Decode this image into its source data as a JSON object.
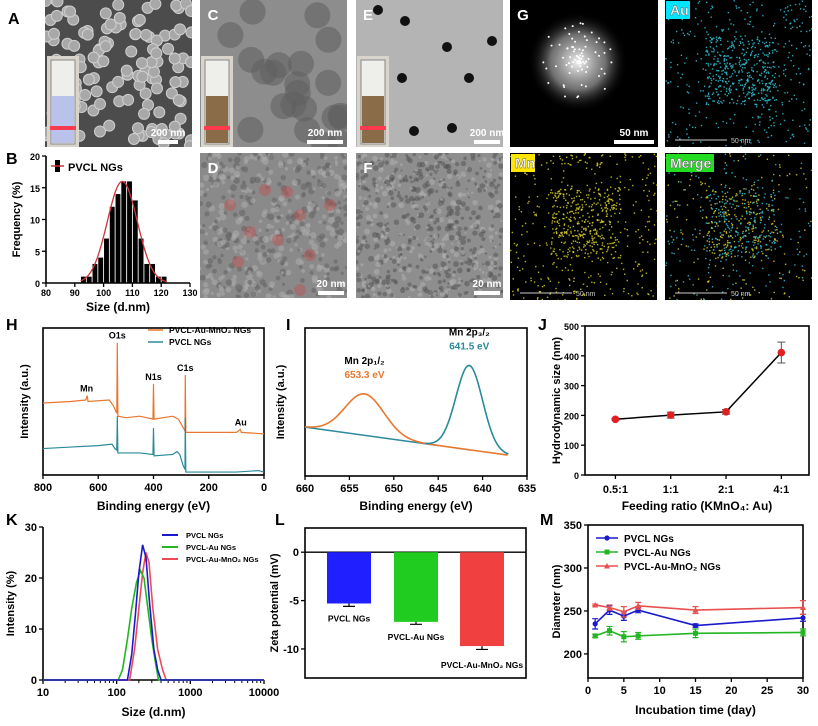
{
  "panels": {
    "A": {
      "letter": "A",
      "scale_bar": "200 nm"
    },
    "C": {
      "letter": "C",
      "scale_bar": "200 nm"
    },
    "E": {
      "letter": "E",
      "scale_bar": "200 nm"
    },
    "G": {
      "letter": "G",
      "scale_bar": "50 nm"
    },
    "Au": {
      "label": "Au",
      "scale_bar": "50 nm",
      "label_color": "#00e5ff",
      "dot_color": "#2fc4d8"
    },
    "D": {
      "letter": "D",
      "scale_bar": "20 nm"
    },
    "F": {
      "letter": "F",
      "scale_bar": "20 nm"
    },
    "Mn": {
      "label": "Mn",
      "scale_bar": "50 nm",
      "label_color": "#ffe600",
      "dot_color": "#d8d02a"
    },
    "Merge": {
      "label": "Merge",
      "scale_bar": "50 nm",
      "label_color": "#22dd22"
    }
  },
  "chart_data": [
    {
      "panel": "B",
      "type": "bar",
      "legend": [
        "PVCL NGs"
      ],
      "legend_position": "top-left",
      "xlabel": "Size (d.nm)",
      "ylabel": "Frequency (%)",
      "xlim": [
        80,
        130
      ],
      "ylim": [
        0,
        20
      ],
      "xticks": [
        80,
        90,
        100,
        110,
        120,
        130
      ],
      "yticks": [
        0,
        5,
        10,
        15,
        20
      ],
      "x": [
        93,
        95,
        97,
        99,
        101,
        103,
        105,
        107,
        109,
        111,
        113,
        115,
        117,
        119,
        121
      ],
      "values": [
        1,
        1,
        3,
        4,
        7,
        12,
        14,
        16,
        16,
        13,
        7,
        3,
        3,
        1,
        1
      ],
      "fit": {
        "type": "gaussian",
        "mean": 106.5,
        "sd": 5.2,
        "peak": 16,
        "color": "#d0343a"
      },
      "bar_color": "#000000"
    },
    {
      "panel": "H",
      "type": "line",
      "xlabel": "Binding energy (eV)",
      "ylabel": "Intensity (a.u.)",
      "xlim": [
        800,
        0
      ],
      "ylim": [
        0,
        100
      ],
      "xticks": [
        800,
        600,
        400,
        200,
        0
      ],
      "series": [
        {
          "name": "PVCL-Au-MnO₂ NGs",
          "color": "#e8772e",
          "points": [
            [
              800,
              49
            ],
            [
              700,
              50
            ],
            [
              645,
              51
            ],
            [
              640,
              54
            ],
            [
              637,
              50
            ],
            [
              560,
              51
            ],
            [
              545,
              47
            ],
            [
              533,
              42
            ],
            [
              531,
              90
            ],
            [
              529,
              40
            ],
            [
              500,
              39
            ],
            [
              450,
              40
            ],
            [
              402,
              38
            ],
            [
              400,
              62
            ],
            [
              398,
              38
            ],
            [
              330,
              40
            ],
            [
              310,
              38
            ],
            [
              292,
              32
            ],
            [
              286,
              30
            ],
            [
              285,
              68
            ],
            [
              283,
              29
            ],
            [
              200,
              29
            ],
            [
              100,
              29
            ],
            [
              86,
              31
            ],
            [
              82,
              29
            ],
            [
              0,
              28
            ]
          ]
        },
        {
          "name": "PVCL NGs",
          "color": "#2a8a9a",
          "points": [
            [
              800,
              18
            ],
            [
              700,
              19
            ],
            [
              600,
              20
            ],
            [
              550,
              21
            ],
            [
              540,
              18
            ],
            [
              533,
              17
            ],
            [
              531,
              40
            ],
            [
              529,
              15
            ],
            [
              450,
              15
            ],
            [
              402,
              14
            ],
            [
              400,
              32
            ],
            [
              398,
              13
            ],
            [
              330,
              14
            ],
            [
              315,
              16
            ],
            [
              305,
              14
            ],
            [
              292,
              6
            ],
            [
              286,
              4
            ],
            [
              285,
              39
            ],
            [
              283,
              2
            ],
            [
              100,
              2
            ],
            [
              20,
              3
            ],
            [
              0,
              2
            ]
          ]
        }
      ],
      "annotations": [
        {
          "text": "O1s",
          "x": 531,
          "y": 90
        },
        {
          "text": "N1s",
          "x": 400,
          "y": 62
        },
        {
          "text": "C1s",
          "x": 285,
          "y": 68
        },
        {
          "text": "Mn",
          "x": 642,
          "y": 54
        },
        {
          "text": "Au",
          "x": 84,
          "y": 31
        }
      ],
      "legend_position": "top-right"
    },
    {
      "panel": "I",
      "type": "line",
      "xlabel": "Binding energy (eV)",
      "ylabel": "Intensity (a.u.)",
      "xlim": [
        660,
        635
      ],
      "ylim": [
        0,
        100
      ],
      "xticks": [
        660,
        655,
        650,
        645,
        640,
        635
      ],
      "x_range": [
        660,
        637
      ],
      "background": {
        "start": [
          660,
          33
        ],
        "end": [
          637,
          14
        ]
      },
      "series": [
        {
          "label": "Mn 2p₁/₂",
          "value_label": "653.3 eV",
          "center": 653.3,
          "amplitude": 28,
          "width": 2.2,
          "color": "#e8772e"
        },
        {
          "label": "Mn 2p₃/₂",
          "value_label": "641.5 eV",
          "center": 641.5,
          "amplitude": 57,
          "width": 1.5,
          "color": "#2a8a9a"
        }
      ]
    },
    {
      "panel": "J",
      "type": "line",
      "xlabel": "Feeding ratio (KMnO₄: Au)",
      "ylabel": "Hydrodynamic size (nm)",
      "categories": [
        "0.5:1",
        "1:1",
        "2:1",
        "4:1"
      ],
      "values": [
        187,
        201,
        212,
        411
      ],
      "errors": [
        3,
        10,
        8,
        35
      ],
      "ylim": [
        0,
        500
      ],
      "yticks": [
        0,
        100,
        200,
        300,
        400,
        500
      ],
      "marker_color": "#e02020",
      "line_color": "#000000"
    },
    {
      "panel": "K",
      "type": "line",
      "xlabel": "Size (d.nm)",
      "ylabel": "Intensity (%)",
      "xscale": "log",
      "xlim": [
        10,
        10000
      ],
      "ylim": [
        0,
        30
      ],
      "xticks": [
        10,
        100,
        1000,
        10000
      ],
      "yticks": [
        0,
        10,
        20,
        30
      ],
      "legend_position": "top-right",
      "series": [
        {
          "name": "PVCL NGs",
          "color": "#1a1acc",
          "points": [
            [
              10,
              0
            ],
            [
              140,
              0
            ],
            [
              160,
              5
            ],
            [
              180,
              13
            ],
            [
              200,
              21
            ],
            [
              225,
              26.5
            ],
            [
              250,
              24
            ],
            [
              280,
              15
            ],
            [
              320,
              6
            ],
            [
              360,
              2
            ],
            [
              400,
              0
            ],
            [
              10000,
              0
            ]
          ]
        },
        {
          "name": "PVCL-Au NGs",
          "color": "#22b622",
          "points": [
            [
              10,
              0
            ],
            [
              105,
              0
            ],
            [
              120,
              2
            ],
            [
              140,
              8
            ],
            [
              160,
              14
            ],
            [
              185,
              19
            ],
            [
              210,
              21.5
            ],
            [
              235,
              20
            ],
            [
              260,
              15
            ],
            [
              300,
              8
            ],
            [
              340,
              3
            ],
            [
              370,
              0
            ],
            [
              10000,
              0
            ]
          ]
        },
        {
          "name": "PVCL-Au-MnO₂ NGs",
          "color": "#ee4a55",
          "points": [
            [
              10,
              0
            ],
            [
              150,
              0
            ],
            [
              175,
              6
            ],
            [
              200,
              14
            ],
            [
              225,
              21
            ],
            [
              250,
              25
            ],
            [
              275,
              23
            ],
            [
              310,
              14
            ],
            [
              360,
              6
            ],
            [
              420,
              2
            ],
            [
              470,
              0
            ],
            [
              10000,
              0
            ]
          ]
        }
      ]
    },
    {
      "panel": "L",
      "type": "bar",
      "ylabel": "Zeta potential (mV)",
      "categories": [
        "PVCL NGs",
        "PVCL-Au NGs",
        "PVCL-Au-MnO₂ NGs"
      ],
      "values": [
        -5.3,
        -7.2,
        -9.7
      ],
      "errors": [
        0.3,
        0.25,
        0.35
      ],
      "colors": [
        "#1f1fff",
        "#1fcc1f",
        "#f04040"
      ],
      "ylim": [
        -13,
        2.5
      ],
      "yticks": [
        0,
        -5,
        -10
      ]
    },
    {
      "panel": "M",
      "type": "line",
      "xlabel": "Incubation time (day)",
      "ylabel": "Diameter (nm)",
      "xlim": [
        0,
        30
      ],
      "ylim": [
        172,
        350
      ],
      "xticks": [
        0,
        5,
        10,
        15,
        20,
        25,
        30
      ],
      "yticks": [
        200,
        250,
        300,
        350
      ],
      "x": [
        1,
        3,
        5,
        7,
        15,
        30
      ],
      "legend_position": "top-left",
      "series": [
        {
          "name": "PVCL NGs",
          "color": "#1a1acc",
          "marker": "circle",
          "values": [
            235,
            251,
            244,
            251,
            233,
            242
          ],
          "errors": [
            6,
            5,
            5,
            3,
            2,
            4
          ]
        },
        {
          "name": "PVCL-Au NGs",
          "color": "#22b622",
          "marker": "square",
          "values": [
            221,
            227,
            220,
            221,
            224,
            225
          ],
          "errors": [
            2,
            5,
            6,
            4,
            5,
            4
          ]
        },
        {
          "name": "PVCL-Au-MnO₂  NGs",
          "color": "#e85050",
          "marker": "triangle",
          "values": [
            257,
            254,
            249,
            256,
            251,
            254
          ],
          "errors": [
            1,
            3,
            6,
            4,
            4,
            8
          ]
        }
      ]
    }
  ],
  "panel_letters": {
    "B": "B",
    "H": "H",
    "I": "I",
    "J": "J",
    "K": "K",
    "L": "L",
    "M": "M"
  }
}
